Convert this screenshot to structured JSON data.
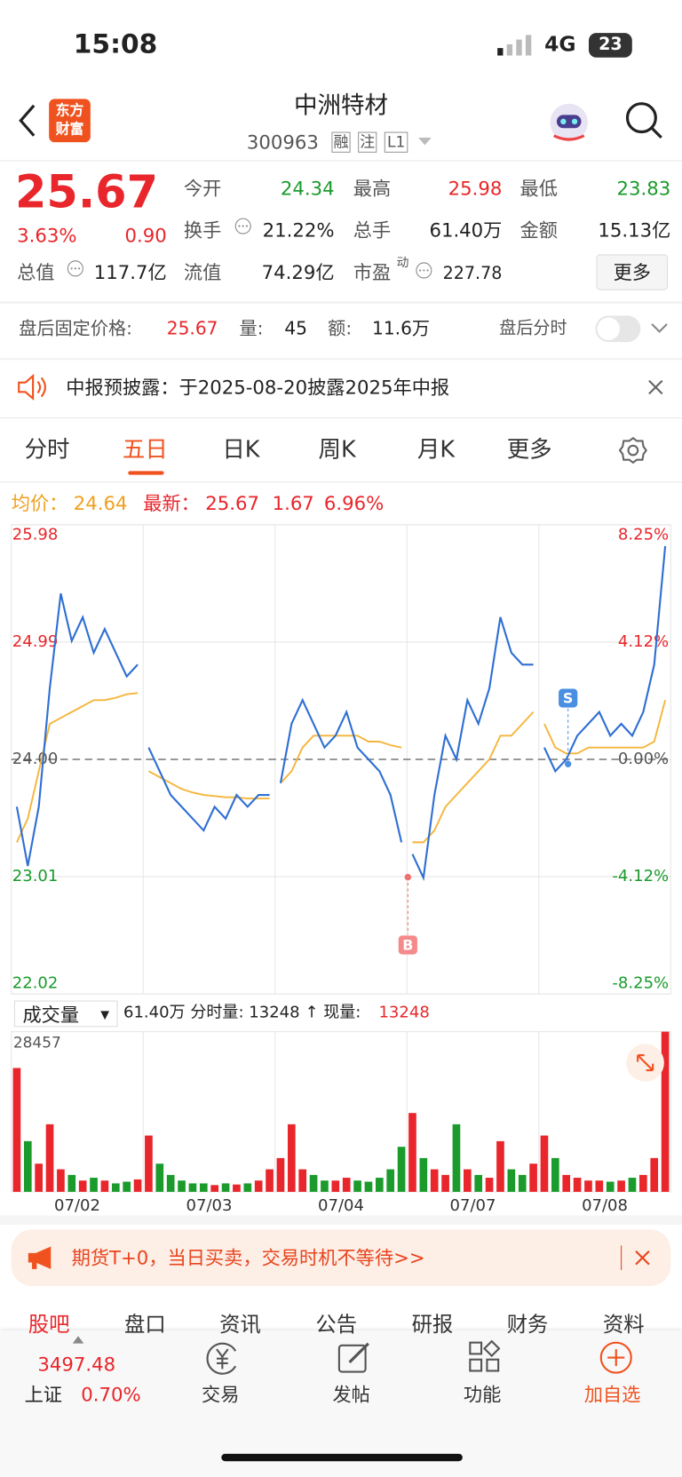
{
  "status": {
    "time": "15:08",
    "network": "4G",
    "battery": "23"
  },
  "header": {
    "logo": [
      "东方",
      "财富"
    ],
    "title": "中洲特材",
    "code": "300963",
    "badges": [
      "融",
      "注",
      "L1"
    ]
  },
  "quote": {
    "price": "25.67",
    "change_pct": "3.63%",
    "change": "0.90",
    "open": {
      "label": "今开",
      "value": "24.34"
    },
    "high": {
      "label": "最高",
      "value": "25.98"
    },
    "low": {
      "label": "最低",
      "value": "23.83"
    },
    "turnover": {
      "label": "换手",
      "value": "21.22%"
    },
    "volume": {
      "label": "总手",
      "value": "61.40万"
    },
    "amount": {
      "label": "金额",
      "value": "15.13亿"
    },
    "mcap": {
      "label": "总值",
      "value": "117.7亿"
    },
    "float": {
      "label": "流值",
      "value": "74.29亿"
    },
    "pe": {
      "label": "市盈",
      "sup": "动",
      "value": "227.78"
    },
    "more": "更多"
  },
  "after_hours": {
    "label": "盘后固定价格:",
    "price": "25.67",
    "vol_label": "量:",
    "vol": "45",
    "amt_label": "额:",
    "amt": "11.6万",
    "toggle_label": "盘后分时"
  },
  "notice": "中报预披露：于2025-08-20披露2025年中报",
  "tabs": [
    "分时",
    "五日",
    "日K",
    "周K",
    "月K",
    "更多"
  ],
  "info": {
    "avg_label": "均价：",
    "avg": "24.64",
    "last_label": "最新：",
    "last": "25.67",
    "chg": "1.67",
    "pct": "6.96%"
  },
  "chart_data": [
    {
      "type": "line",
      "day_labels": [
        "07/02",
        "07/03",
        "07/04",
        "07/07",
        "07/08"
      ],
      "ylim": [
        22.02,
        25.98
      ],
      "yticks": [
        25.98,
        24.99,
        {
          "value": 24,
          "label": "24.00"
        },
        23.01,
        22.02
      ],
      "y2lim": [
        -8.25,
        8.25
      ],
      "y2ticks": [
        {
          "value": 8.25,
          "label": "8.25%"
        },
        {
          "value": 4.12,
          "label": "4.12%"
        },
        {
          "value": 0,
          "label": "0.00%"
        },
        {
          "value": -4.12,
          "label": "-4.12%"
        },
        {
          "value": -8.25,
          "label": "-8.25%"
        }
      ],
      "series": [
        {
          "color": "#2f6fd3",
          "values": [
            23.6,
            23.1,
            23.6,
            24.6,
            25.4,
            25.0,
            25.2,
            24.9,
            25.1,
            24.9,
            24.7,
            24.8,
            24.1,
            23.9,
            23.7,
            23.6,
            23.5,
            23.4,
            23.6,
            23.5,
            23.7,
            23.6,
            23.7,
            23.7,
            23.8,
            24.3,
            24.5,
            24.3,
            24.1,
            24.2,
            24.4,
            24.1,
            24.0,
            23.9,
            23.7,
            23.3,
            23.2,
            23.0,
            23.7,
            24.2,
            24.0,
            24.5,
            24.3,
            24.6,
            25.2,
            24.9,
            24.8,
            24.8,
            24.1,
            23.9,
            24.0,
            24.2,
            24.3,
            24.4,
            24.2,
            24.3,
            24.2,
            24.4,
            24.8,
            25.8
          ]
        },
        {
          "color": "#f5b53b",
          "values": [
            23.3,
            23.5,
            23.9,
            24.3,
            24.35,
            24.4,
            24.45,
            24.5,
            24.5,
            24.52,
            24.55,
            24.56,
            23.9,
            23.85,
            23.8,
            23.75,
            23.72,
            23.7,
            23.69,
            23.68,
            23.68,
            23.67,
            23.67,
            23.67,
            23.8,
            23.9,
            24.1,
            24.2,
            24.2,
            24.2,
            24.2,
            24.2,
            24.15,
            24.15,
            24.12,
            24.1,
            23.3,
            23.3,
            23.4,
            23.6,
            23.7,
            23.8,
            23.9,
            24.0,
            24.2,
            24.2,
            24.3,
            24.4,
            24.3,
            24.1,
            24.05,
            24.05,
            24.1,
            24.1,
            24.1,
            24.1,
            24.1,
            24.1,
            24.15,
            24.5
          ]
        }
      ],
      "markers": [
        "B",
        "S"
      ]
    },
    {
      "type": "bar",
      "label": "成交量",
      "stats": "61.40万 分时量: 13248 ↑ 现量:",
      "current": "13248",
      "up_color": "#e8262b",
      "down_color": "#1a9b2b",
      "ylim": [
        0,
        28457
      ],
      "yticks": [
        28457
      ],
      "values": [
        22000,
        9000,
        5000,
        12000,
        4000,
        3000,
        2000,
        2500,
        2000,
        1500,
        1800,
        2200,
        10000,
        5000,
        3000,
        2000,
        1500,
        1500,
        1200,
        1500,
        1300,
        1500,
        2000,
        4000,
        6000,
        12000,
        4000,
        3000,
        2000,
        2000,
        2500,
        2000,
        1800,
        2500,
        4000,
        8000,
        14000,
        6000,
        4000,
        3000,
        12000,
        4000,
        3000,
        2500,
        9000,
        4000,
        3000,
        5000,
        10000,
        6000,
        3000,
        2500,
        2000,
        2000,
        1800,
        2000,
        2500,
        3000,
        6000,
        28457
      ]
    }
  ],
  "banner": "期货T+0，当日买卖，交易时机不等待>>",
  "sub_tabs": [
    "股吧",
    "盘口",
    "资讯",
    "公告",
    "研报",
    "财务",
    "资料"
  ],
  "nav": {
    "index_value": "3497.48",
    "index_name": "上证",
    "index_pct": "0.70%",
    "items": [
      "交易",
      "发帖",
      "功能",
      "加自选"
    ]
  }
}
